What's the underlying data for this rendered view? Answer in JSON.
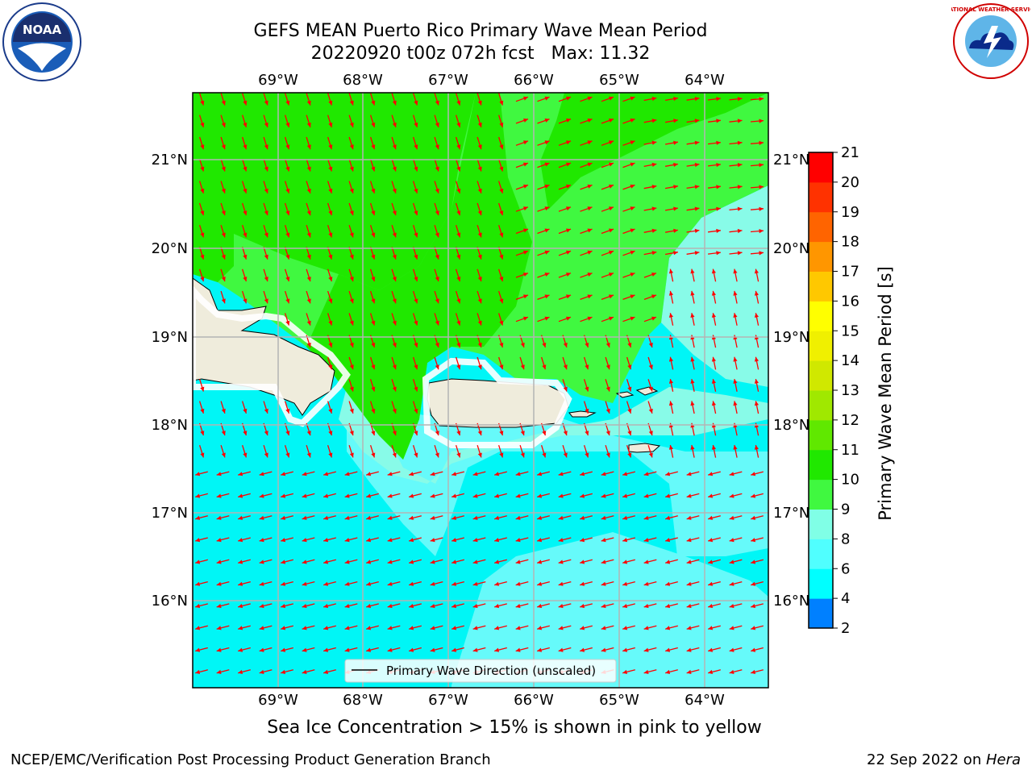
{
  "title": {
    "line1": "GEFS MEAN Puerto Rico Primary Wave Mean Period",
    "line2": "20220920 t00z 072h fcst   Max: 11.32"
  },
  "map": {
    "lon_labels": [
      "69°W",
      "68°W",
      "67°W",
      "66°W",
      "65°W",
      "64°W"
    ],
    "lat_labels": [
      "21°N",
      "20°N",
      "19°N",
      "18°N",
      "17°N",
      "16°N"
    ],
    "legend_text": "Primary Wave Direction (unscaled)",
    "arrow_color": "#ff0000",
    "land_color": "#efecdc"
  },
  "colorbar": {
    "label": "Primary Wave Mean Period [s]",
    "ticks": [
      "2",
      "4",
      "6",
      "8",
      "9",
      "10",
      "11",
      "12",
      "13",
      "14",
      "15",
      "16",
      "17",
      "18",
      "19",
      "20",
      "21"
    ],
    "colors": [
      "#0000ff",
      "#0080ff",
      "#00ffff",
      "#50ffff",
      "#80ffe6",
      "#40f840",
      "#20e800",
      "#60e800",
      "#a0e800",
      "#d0e800",
      "#f0f000",
      "#ffff00",
      "#ffc800",
      "#ff9600",
      "#ff6400",
      "#ff3200",
      "#ff0000"
    ]
  },
  "caption": "Sea Ice Concentration > 15% is shown in pink to yellow",
  "footer": {
    "left": "NCEP/EMC/Verification Post Processing Product Generation Branch",
    "date": "22 Sep 2022 on ",
    "host": "Hera"
  },
  "logos": {
    "noaa_text": "NOAA",
    "nws_text": "NATIONAL WEATHER SERVICE"
  }
}
